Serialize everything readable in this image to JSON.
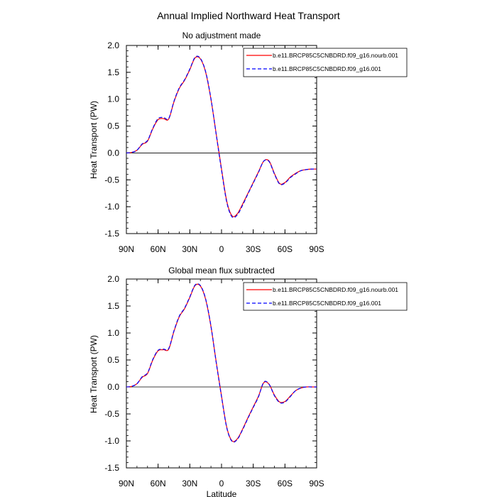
{
  "figure": {
    "title": "Annual Implied Northward Heat Transport"
  },
  "panels": [
    {
      "subtitle": "No adjustment made",
      "ylabel": "Heat Transport (PW)",
      "xlabel": "",
      "yticks": [
        "-1.5",
        "-1.0",
        "-0.5",
        "0.0",
        "0.5",
        "1.0",
        "1.5",
        "2.0"
      ],
      "xticks": [
        "90N",
        "60N",
        "30N",
        "0",
        "30S",
        "60S",
        "90S"
      ]
    },
    {
      "subtitle": "Global mean flux subtracted",
      "ylabel": "Heat Transport (PW)",
      "xlabel": "Latitude",
      "yticks": [
        "-1.5",
        "-1.0",
        "-0.5",
        "0.0",
        "0.5",
        "1.0",
        "1.5",
        "2.0"
      ],
      "xticks": [
        "90N",
        "60N",
        "30N",
        "0",
        "30S",
        "60S",
        "90S"
      ]
    }
  ],
  "legend": {
    "items": [
      {
        "label": "b.e11.BRCP85C5CNBDRD.f09_g16.nourb.001",
        "color": "#ff0000",
        "dash": "solid"
      },
      {
        "label": "b.e11.BRCP85C5CNBDRD.f09_g16.001",
        "color": "#0000ff",
        "dash": "dashed"
      }
    ]
  },
  "chart_data": [
    {
      "type": "line",
      "title": "No adjustment made",
      "xlabel": "",
      "ylabel": "Heat Transport (PW)",
      "xlim": [
        90,
        -90
      ],
      "ylim": [
        -1.5,
        2.0
      ],
      "x": [
        90,
        85,
        80,
        75,
        70,
        65,
        60,
        55,
        50,
        45,
        40,
        35,
        30,
        25,
        20,
        15,
        10,
        5,
        0,
        -5,
        -10,
        -15,
        -20,
        -25,
        -30,
        -35,
        -40,
        -45,
        -50,
        -55,
        -60,
        -65,
        -70,
        -75,
        -80,
        -85,
        -90
      ],
      "series": [
        {
          "name": "b.e11.BRCP85C5CNBDRD.f09_g16.nourb.001",
          "color": "#ff0000",
          "dash": "solid",
          "values": [
            0.0,
            0.01,
            0.05,
            0.16,
            0.22,
            0.45,
            0.62,
            0.64,
            0.63,
            0.95,
            1.2,
            1.35,
            1.55,
            1.77,
            1.75,
            1.5,
            1.0,
            0.35,
            -0.3,
            -0.9,
            -1.17,
            -1.13,
            -0.95,
            -0.75,
            -0.55,
            -0.35,
            -0.15,
            -0.15,
            -0.38,
            -0.57,
            -0.55,
            -0.45,
            -0.38,
            -0.33,
            -0.31,
            -0.3,
            -0.3
          ]
        },
        {
          "name": "b.e11.BRCP85C5CNBDRD.f09_g16.001",
          "color": "#0000ff",
          "dash": "dashed",
          "values": [
            0.0,
            0.01,
            0.05,
            0.17,
            0.23,
            0.46,
            0.64,
            0.66,
            0.64,
            0.96,
            1.21,
            1.36,
            1.56,
            1.78,
            1.76,
            1.51,
            1.01,
            0.34,
            -0.32,
            -0.92,
            -1.19,
            -1.15,
            -0.97,
            -0.76,
            -0.56,
            -0.36,
            -0.15,
            -0.16,
            -0.39,
            -0.58,
            -0.56,
            -0.46,
            -0.39,
            -0.33,
            -0.31,
            -0.3,
            -0.3
          ]
        }
      ]
    },
    {
      "type": "line",
      "title": "Global mean flux subtracted",
      "xlabel": "Latitude",
      "ylabel": "Heat Transport (PW)",
      "xlim": [
        90,
        -90
      ],
      "ylim": [
        -1.5,
        2.0
      ],
      "x": [
        90,
        85,
        80,
        75,
        70,
        65,
        60,
        55,
        50,
        45,
        40,
        35,
        30,
        25,
        20,
        15,
        10,
        5,
        0,
        -5,
        -10,
        -15,
        -20,
        -25,
        -30,
        -35,
        -40,
        -45,
        -50,
        -55,
        -60,
        -65,
        -70,
        -75,
        -80,
        -85,
        -90
      ],
      "series": [
        {
          "name": "b.e11.BRCP85C5CNBDRD.f09_g16.nourb.001",
          "color": "#ff0000",
          "dash": "solid",
          "values": [
            0.0,
            0.01,
            0.06,
            0.18,
            0.25,
            0.5,
            0.67,
            0.69,
            0.7,
            1.03,
            1.3,
            1.45,
            1.66,
            1.88,
            1.87,
            1.62,
            1.12,
            0.46,
            -0.17,
            -0.75,
            -1.0,
            -0.96,
            -0.78,
            -0.57,
            -0.37,
            -0.17,
            0.08,
            0.05,
            -0.15,
            -0.28,
            -0.27,
            -0.17,
            -0.07,
            -0.02,
            0.0,
            0.0,
            0.0
          ]
        },
        {
          "name": "b.e11.BRCP85C5CNBDRD.f09_g16.001",
          "color": "#0000ff",
          "dash": "dashed",
          "values": [
            0.0,
            0.01,
            0.06,
            0.19,
            0.26,
            0.51,
            0.68,
            0.7,
            0.71,
            1.04,
            1.31,
            1.46,
            1.67,
            1.89,
            1.88,
            1.63,
            1.13,
            0.45,
            -0.18,
            -0.76,
            -1.01,
            -0.97,
            -0.79,
            -0.58,
            -0.38,
            -0.18,
            0.09,
            0.05,
            -0.16,
            -0.29,
            -0.28,
            -0.18,
            -0.07,
            -0.02,
            0.0,
            0.0,
            0.0
          ]
        }
      ]
    }
  ]
}
